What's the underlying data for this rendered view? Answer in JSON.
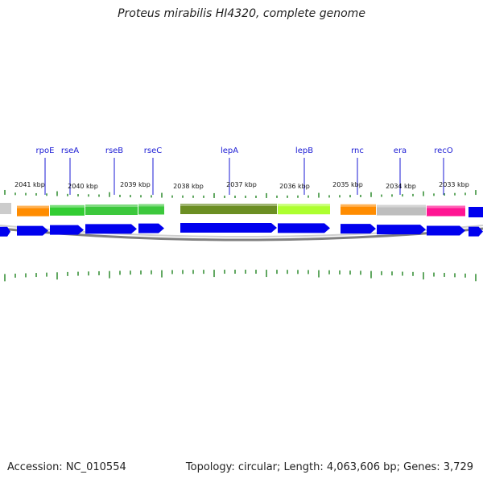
{
  "title": "Proteus mirabilis HI4320, complete genome",
  "footer": {
    "accession": "Accession: NC_010554",
    "summary": "Topology: circular; Length: 4,063,606 bp; Genes: 3,729"
  },
  "colors": {
    "cds": "#0000ee",
    "tick": "#2e8b2e",
    "label": "#1a1ad4",
    "backbone": "#808080"
  },
  "kbp_labels": [
    "2041 kbp",
    "2040 kbp",
    "2039 kbp",
    "2038 kbp",
    "2037 kbp",
    "2036 kbp",
    "2035 kbp",
    "2034 kbp",
    "2033 kbp"
  ],
  "genes": [
    {
      "name": "rpoE",
      "color": "#ff8c00"
    },
    {
      "name": "rseA",
      "color": "#32cd32"
    },
    {
      "name": "rseB",
      "color": "#3cc83c"
    },
    {
      "name": "rseC",
      "color": "#3cc83c"
    },
    {
      "name": "lepA",
      "color": "#6b8e23"
    },
    {
      "name": "lepB",
      "color": "#adff2f"
    },
    {
      "name": "rnc",
      "color": "#ff8c00"
    },
    {
      "name": "era",
      "color": "#bebebe"
    },
    {
      "name": "recO",
      "color": "#ff1493"
    }
  ]
}
